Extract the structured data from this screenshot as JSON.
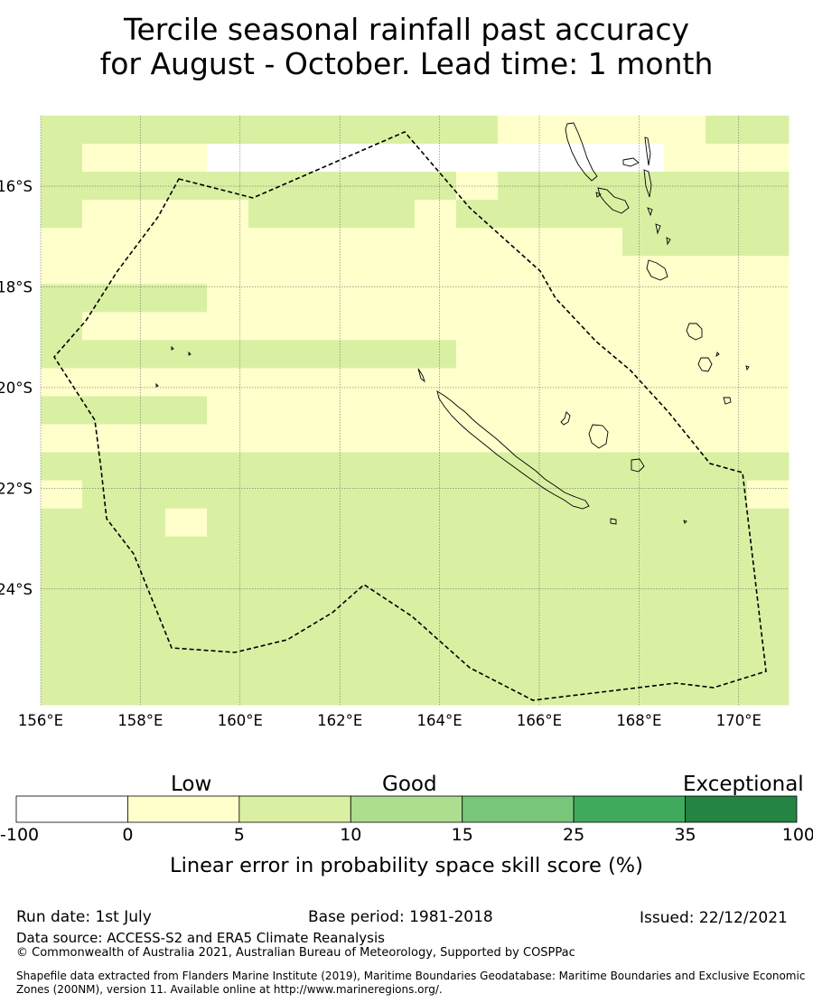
{
  "title": {
    "line1": "Tercile seasonal rainfall past accuracy",
    "line2": "for August - October. Lead time: 1 month"
  },
  "map": {
    "lon_labels": [
      "156°E",
      "158°E",
      "160°E",
      "162°E",
      "164°E",
      "166°E",
      "168°E",
      "170°E"
    ],
    "lat_labels": [
      "16°S",
      "18°S",
      "20°S",
      "22°S",
      "24°S"
    ],
    "lon_range": [
      156,
      171
    ],
    "lat_range": [
      -26.3,
      -14.6
    ],
    "grid_lines": true,
    "skill_bins": {
      "levels": [
        -100,
        0,
        5,
        10,
        15,
        25,
        35,
        100
      ],
      "colors": [
        "#ffffff",
        "#ffffcc",
        "#d9f0a3",
        "#addd8e",
        "#78c679",
        "#41ab5d",
        "#238443"
      ]
    },
    "grid_note": "rows top-to-bottom, 18 columns from 156E; digits are bin indexes into skill_bins.colors",
    "grid": [
      "222222222221111122",
      "211100000000000111",
      "222222222212222222",
      "211112222122222222",
      "111111111111112222",
      "111111111111111111",
      "222211111111111111",
      "211111111111111111",
      "222222222211111111",
      "111111111111111111",
      "222211111111111111",
      "111111111111111111",
      "222222222222222222",
      "122222222222222221",
      "222122222222222222",
      "222222222222222222",
      "222222222222222222",
      "222222222222222222",
      "222222222222222222",
      "222222222222222222",
      "222222222222222222"
    ]
  },
  "colorbar": {
    "category_labels": [
      "Low",
      "Good",
      "Exceptional"
    ],
    "ticks": [
      "-100",
      "0",
      "5",
      "10",
      "15",
      "25",
      "35",
      "100"
    ],
    "label": "Linear error in probability space skill score (%)"
  },
  "footer": {
    "run_date": "Run date: 1st July",
    "base_period": "Base period: 1981-2018",
    "issued": "Issued: 22/12/2021",
    "data_source": "Data source: ACCESS-S2 and ERA5 Climate Reanalysis",
    "copyright": "© Commonwealth of Australia 2021, Australian Bureau of Meteorology, Supported by COSPPac",
    "shapefile": "Shapefile data extracted from Flanders Marine Institute (2019), Maritime Boundaries Geodatabase: Maritime Boundaries and Exclusive Economic Zones (200NM), version 11. Available online at http://www.marineregions.org/."
  }
}
